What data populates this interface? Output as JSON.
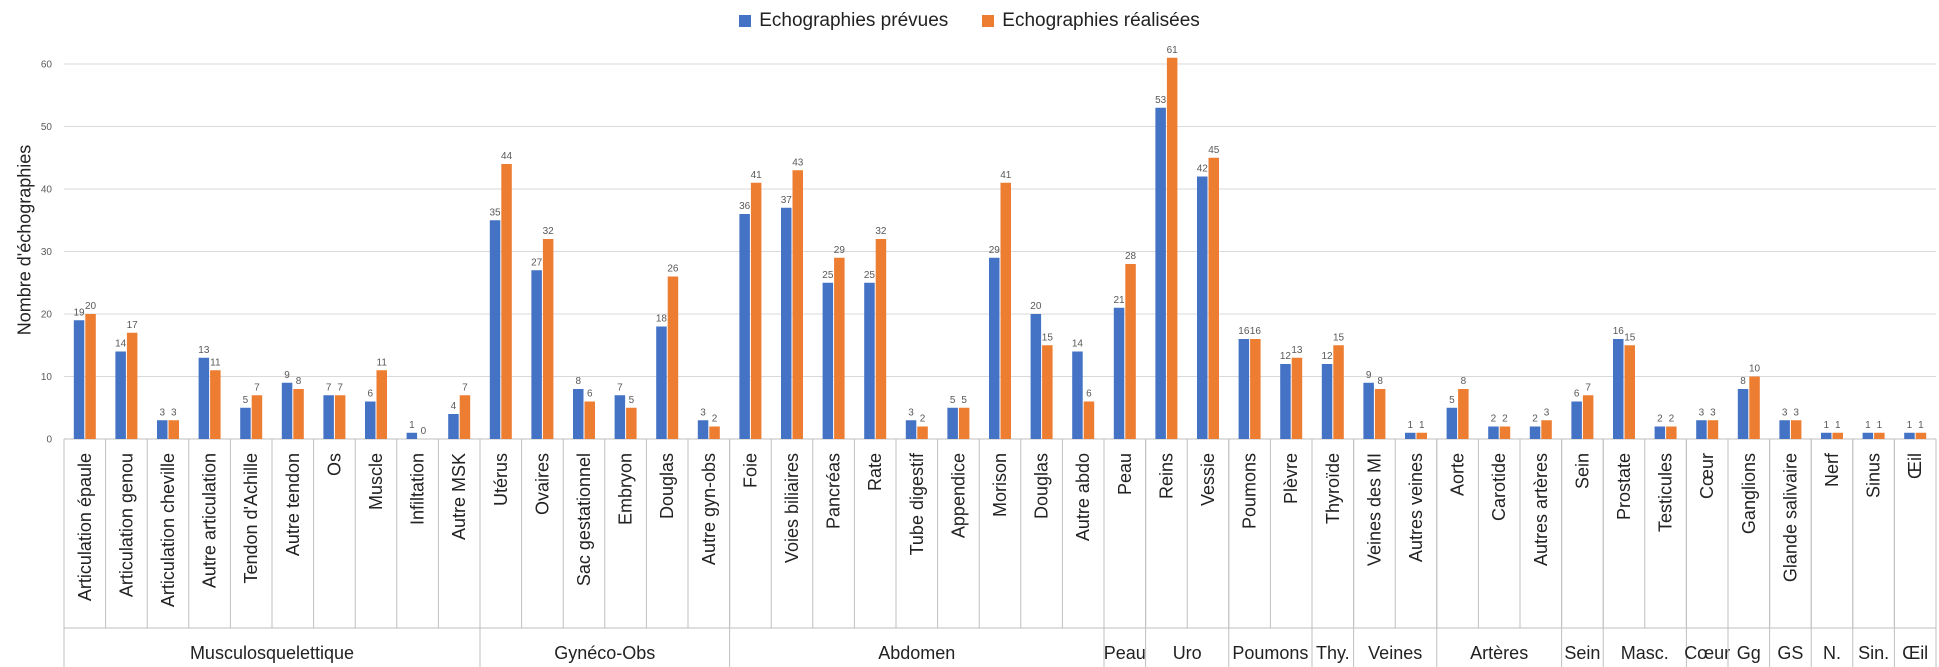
{
  "legend": {
    "planned": "Echographies prévues",
    "done": "Echographies réalisées"
  },
  "colors": {
    "planned": "#4472C4",
    "done": "#ED7D31",
    "grid": "#d9d9d9",
    "axis": "#bfbfbf",
    "text": "#222222",
    "tick": "#595959"
  },
  "chart_data": {
    "type": "bar",
    "title": "",
    "xlabel": "",
    "ylabel": "Nombre d'échographies",
    "ylim": [
      0,
      60
    ],
    "yticks": [
      0,
      10,
      20,
      30,
      40,
      50,
      60
    ],
    "grid": true,
    "legend_position": "top-center",
    "series": [
      {
        "name": "Echographies prévues",
        "key": "planned"
      },
      {
        "name": "Echographies réalisées",
        "key": "done"
      }
    ],
    "groups": [
      {
        "name": "Musculosquelettique",
        "items": [
          {
            "label": "Articulation épaule",
            "planned": 19,
            "done": 20
          },
          {
            "label": "Articulation genou",
            "planned": 14,
            "done": 17
          },
          {
            "label": "Articulation cheville",
            "planned": 3,
            "done": 3
          },
          {
            "label": "Autre articulation",
            "planned": 13,
            "done": 11
          },
          {
            "label": "Tendon d'Achille",
            "planned": 5,
            "done": 7
          },
          {
            "label": "Autre tendon",
            "planned": 9,
            "done": 8
          },
          {
            "label": "Os",
            "planned": 7,
            "done": 7
          },
          {
            "label": "Muscle",
            "planned": 6,
            "done": 11
          },
          {
            "label": "Infiltation",
            "planned": 1,
            "done": 0
          },
          {
            "label": "Autre MSK",
            "planned": 4,
            "done": 7
          }
        ]
      },
      {
        "name": "Gynéco-Obs",
        "items": [
          {
            "label": "Utérus",
            "planned": 35,
            "done": 44
          },
          {
            "label": "Ovaires",
            "planned": 27,
            "done": 32
          },
          {
            "label": "Sac gestationnel",
            "planned": 8,
            "done": 6
          },
          {
            "label": "Embryon",
            "planned": 7,
            "done": 5
          },
          {
            "label": "Douglas",
            "planned": 18,
            "done": 26
          },
          {
            "label": "Autre gyn-obs",
            "planned": 3,
            "done": 2
          }
        ]
      },
      {
        "name": "Abdomen",
        "items": [
          {
            "label": "Foie",
            "planned": 36,
            "done": 41
          },
          {
            "label": "Voies biliaires",
            "planned": 37,
            "done": 43
          },
          {
            "label": "Pancréas",
            "planned": 25,
            "done": 29
          },
          {
            "label": "Rate",
            "planned": 25,
            "done": 32
          },
          {
            "label": "Tube digestif",
            "planned": 3,
            "done": 2
          },
          {
            "label": "Appendice",
            "planned": 5,
            "done": 5
          },
          {
            "label": "Morison",
            "planned": 29,
            "done": 41
          },
          {
            "label": "Douglas",
            "planned": 20,
            "done": 15
          },
          {
            "label": "Autre abdo",
            "planned": 14,
            "done": 6
          }
        ]
      },
      {
        "name": "Peau",
        "items": [
          {
            "label": "Peau",
            "planned": 21,
            "done": 28
          }
        ]
      },
      {
        "name": "Uro",
        "items": [
          {
            "label": "Reins",
            "planned": 53,
            "done": 61
          },
          {
            "label": "Vessie",
            "planned": 42,
            "done": 45
          }
        ]
      },
      {
        "name": "Poumons",
        "items": [
          {
            "label": "Poumons",
            "planned": 16,
            "done": 16
          },
          {
            "label": "Plèvre",
            "planned": 12,
            "done": 13
          }
        ]
      },
      {
        "name": "Thy.",
        "items": [
          {
            "label": "Thyroïde",
            "planned": 12,
            "done": 15
          }
        ]
      },
      {
        "name": "Veines",
        "items": [
          {
            "label": "Veines des MI",
            "planned": 9,
            "done": 8
          },
          {
            "label": "Autres veines",
            "planned": 1,
            "done": 1
          }
        ]
      },
      {
        "name": "Artères",
        "items": [
          {
            "label": "Aorte",
            "planned": 5,
            "done": 8
          },
          {
            "label": "Carotide",
            "planned": 2,
            "done": 2
          },
          {
            "label": "Autres artères",
            "planned": 2,
            "done": 3
          }
        ]
      },
      {
        "name": "Sein",
        "items": [
          {
            "label": "Sein",
            "planned": 6,
            "done": 7
          }
        ]
      },
      {
        "name": "Masc.",
        "items": [
          {
            "label": "Prostate",
            "planned": 16,
            "done": 15
          },
          {
            "label": "Testicules",
            "planned": 2,
            "done": 2
          }
        ]
      },
      {
        "name": "Cœur",
        "items": [
          {
            "label": "Cœur",
            "planned": 3,
            "done": 3
          }
        ]
      },
      {
        "name": "Gg",
        "items": [
          {
            "label": "Ganglions",
            "planned": 8,
            "done": 10
          }
        ]
      },
      {
        "name": "GS",
        "items": [
          {
            "label": "Glande salivaire",
            "planned": 3,
            "done": 3
          }
        ]
      },
      {
        "name": "N.",
        "items": [
          {
            "label": "Nerf",
            "planned": 1,
            "done": 1
          }
        ]
      },
      {
        "name": "Sin.",
        "items": [
          {
            "label": "Sinus",
            "planned": 1,
            "done": 1
          }
        ]
      },
      {
        "name": "Œil",
        "items": [
          {
            "label": "Œil",
            "planned": 1,
            "done": 1
          }
        ]
      }
    ]
  }
}
